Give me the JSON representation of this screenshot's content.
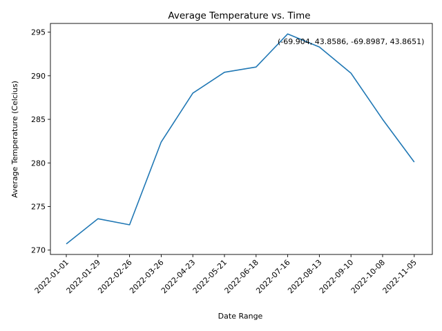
{
  "chart_data": {
    "type": "line",
    "title": "Average Temperature vs. Time",
    "xlabel": "Date Range",
    "ylabel": "Average Temperature (Celcius)",
    "x": [
      "2022-01-01",
      "2022-01-29",
      "2022-02-26",
      "2022-03-26",
      "2022-04-23",
      "2022-05-21",
      "2022-06-18",
      "2022-07-16",
      "2022-08-13",
      "2022-09-10",
      "2022-10-08",
      "2022-11-05"
    ],
    "series": [
      {
        "values": [
          270.7,
          273.6,
          272.9,
          282.4,
          288.0,
          290.4,
          291.0,
          294.8,
          293.3,
          290.3,
          285.0,
          280.1
        ],
        "color": "#1f77b4"
      }
    ],
    "yticks": [
      270,
      275,
      280,
      285,
      290,
      295
    ],
    "ylim": [
      269.5,
      296.0
    ],
    "grid": false,
    "annotation": {
      "text": "(-69.904, 43.8586, -69.8987, 43.8651)",
      "x": "2022-09-10",
      "y": 293.95
    }
  }
}
